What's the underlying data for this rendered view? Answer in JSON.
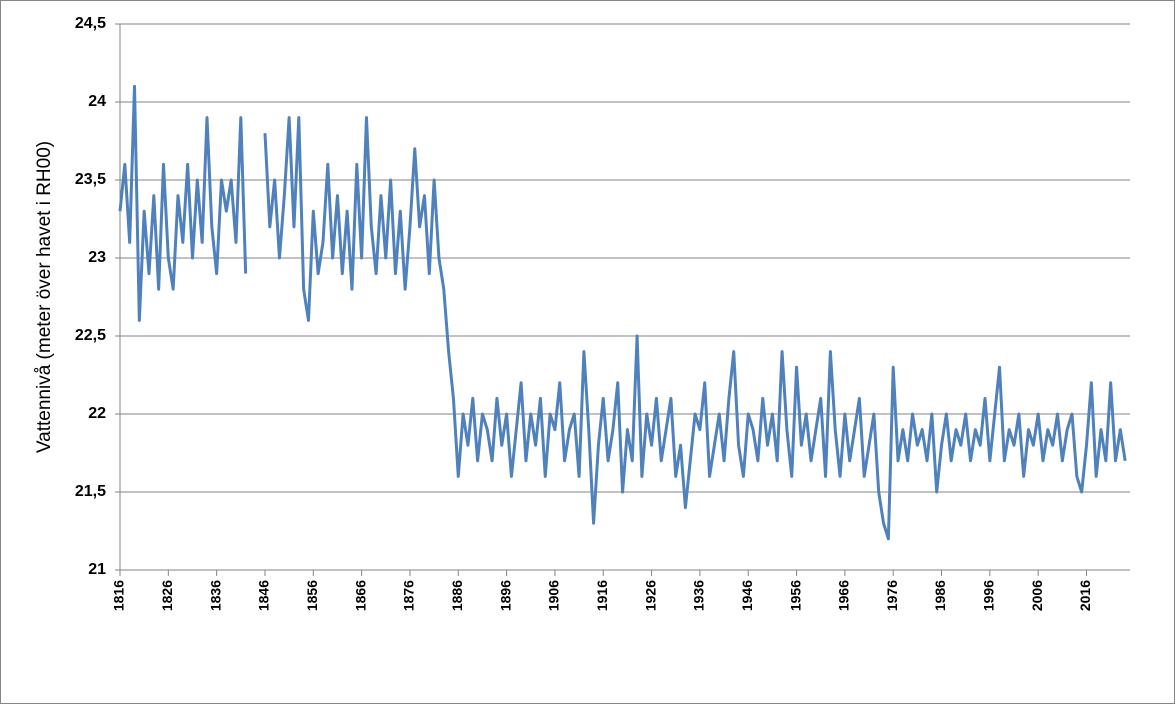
{
  "chart_data": {
    "type": "line",
    "y_label": "Vattennivå (meter över havet i RH00)",
    "color": "#4f81bd",
    "grid": true,
    "xlim": [
      1816,
      2025
    ],
    "ylim": [
      21,
      24.5
    ],
    "yticks": [
      21,
      {
        "value": 21.5,
        "label": "21,5"
      },
      22,
      {
        "value": 22.5,
        "label": "22,5"
      },
      23,
      {
        "value": 23.5,
        "label": "23,5"
      },
      24,
      {
        "value": 24.5,
        "label": "24,5"
      }
    ],
    "xticks": [
      1816,
      1826,
      1836,
      1846,
      1856,
      1866,
      1876,
      1886,
      1896,
      1906,
      1916,
      1926,
      1936,
      1946,
      1956,
      1966,
      1976,
      1986,
      1996,
      2006,
      2016
    ],
    "x": [
      1816,
      1817,
      1818,
      1819,
      1820,
      1821,
      1822,
      1823,
      1824,
      1825,
      1826,
      1827,
      1828,
      1829,
      1830,
      1831,
      1832,
      1833,
      1834,
      1835,
      1836,
      1837,
      1838,
      1839,
      1840,
      1841,
      1842,
      1843,
      1844,
      1845,
      1846,
      1847,
      1848,
      1849,
      1850,
      1851,
      1852,
      1853,
      1854,
      1855,
      1856,
      1857,
      1858,
      1859,
      1860,
      1861,
      1862,
      1863,
      1864,
      1865,
      1866,
      1867,
      1868,
      1869,
      1870,
      1871,
      1872,
      1873,
      1874,
      1875,
      1876,
      1877,
      1878,
      1879,
      1880,
      1881,
      1882,
      1883,
      1884,
      1885,
      1886,
      1887,
      1888,
      1889,
      1890,
      1891,
      1892,
      1893,
      1894,
      1895,
      1896,
      1897,
      1898,
      1899,
      1900,
      1901,
      1902,
      1903,
      1904,
      1905,
      1906,
      1907,
      1908,
      1909,
      1910,
      1911,
      1912,
      1913,
      1914,
      1915,
      1916,
      1917,
      1918,
      1919,
      1920,
      1921,
      1922,
      1923,
      1924,
      1925,
      1926,
      1927,
      1928,
      1929,
      1930,
      1931,
      1932,
      1933,
      1934,
      1935,
      1936,
      1937,
      1938,
      1939,
      1940,
      1941,
      1942,
      1943,
      1944,
      1945,
      1946,
      1947,
      1948,
      1949,
      1950,
      1951,
      1952,
      1953,
      1954,
      1955,
      1956,
      1957,
      1958,
      1959,
      1960,
      1961,
      1962,
      1963,
      1964,
      1965,
      1966,
      1967,
      1968,
      1969,
      1970,
      1971,
      1972,
      1973,
      1974,
      1975,
      1976,
      1977,
      1978,
      1979,
      1980,
      1981,
      1982,
      1983,
      1984,
      1985,
      1986,
      1987,
      1988,
      1989,
      1990,
      1991,
      1992,
      1993,
      1994,
      1995,
      1996,
      1997,
      1998,
      1999,
      2000,
      2001,
      2002,
      2003,
      2004,
      2005,
      2006,
      2007,
      2008,
      2009,
      2010,
      2011,
      2012,
      2013,
      2014,
      2015,
      2016,
      2017,
      2018,
      2019,
      2020,
      2021,
      2022,
      2023,
      2024
    ],
    "values": [
      23.3,
      23.6,
      23.1,
      24.1,
      22.6,
      23.3,
      22.9,
      23.4,
      22.8,
      23.6,
      23.0,
      22.8,
      23.4,
      23.1,
      23.6,
      23.0,
      23.5,
      23.1,
      23.9,
      23.2,
      22.9,
      23.5,
      23.3,
      23.5,
      23.1,
      23.9,
      22.9,
      null,
      null,
      null,
      23.8,
      23.2,
      23.5,
      23.0,
      23.4,
      23.9,
      23.2,
      23.9,
      22.8,
      22.6,
      23.3,
      22.9,
      23.1,
      23.6,
      23.0,
      23.4,
      22.9,
      23.3,
      22.8,
      23.6,
      23.0,
      23.9,
      23.2,
      22.9,
      23.4,
      23.0,
      23.5,
      22.9,
      23.3,
      22.8,
      23.2,
      23.7,
      23.2,
      23.4,
      22.9,
      23.5,
      23.0,
      22.8,
      22.4,
      22.1,
      21.6,
      22.0,
      21.8,
      22.1,
      21.7,
      22.0,
      21.9,
      21.7,
      22.1,
      21.8,
      22.0,
      21.6,
      21.9,
      22.2,
      21.7,
      22.0,
      21.8,
      22.1,
      21.6,
      22.0,
      21.9,
      22.2,
      21.7,
      21.9,
      22.0,
      21.6,
      22.4,
      21.9,
      21.3,
      21.8,
      22.1,
      21.7,
      21.9,
      22.2,
      21.5,
      21.9,
      21.7,
      22.5,
      21.6,
      22.0,
      21.8,
      22.1,
      21.7,
      21.9,
      22.1,
      21.6,
      21.8,
      21.4,
      21.7,
      22.0,
      21.9,
      22.2,
      21.6,
      21.8,
      22.0,
      21.7,
      22.1,
      22.4,
      21.8,
      21.6,
      22.0,
      21.9,
      21.7,
      22.1,
      21.8,
      22.0,
      21.7,
      22.4,
      21.9,
      21.6,
      22.3,
      21.8,
      22.0,
      21.7,
      21.9,
      22.1,
      21.6,
      22.4,
      21.9,
      21.6,
      22.0,
      21.7,
      21.9,
      22.1,
      21.6,
      21.8,
      22.0,
      21.5,
      21.3,
      21.2,
      22.3,
      21.7,
      21.9,
      21.7,
      22.0,
      21.8,
      21.9,
      21.7,
      22.0,
      21.5,
      21.8,
      22.0,
      21.7,
      21.9,
      21.8,
      22.0,
      21.7,
      21.9,
      21.8,
      22.1,
      21.7,
      22.0,
      22.3,
      21.7,
      21.9,
      21.8,
      22.0,
      21.6,
      21.9,
      21.8,
      22.0,
      21.7,
      21.9,
      21.8,
      22.0,
      21.7,
      21.9,
      22.0,
      21.6,
      21.5,
      21.8,
      22.2,
      21.6,
      21.9,
      21.7,
      22.2,
      21.7,
      21.9,
      21.7
    ]
  }
}
